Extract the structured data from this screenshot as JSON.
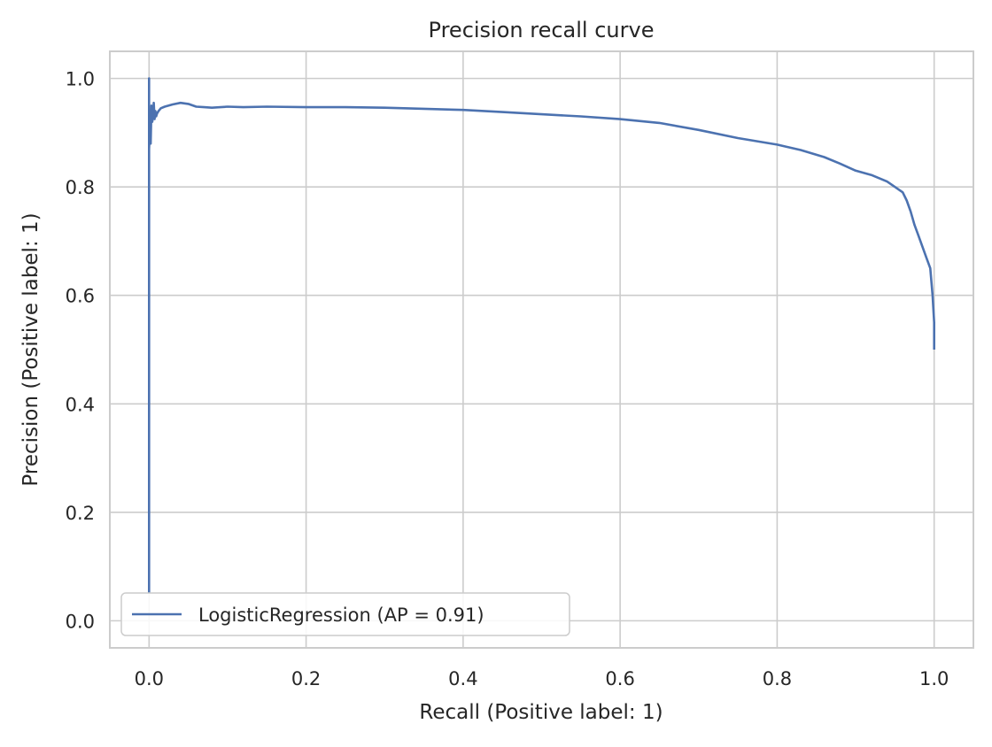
{
  "chart_data": {
    "type": "line",
    "title": "Precision recall curve",
    "xlabel": "Recall (Positive label: 1)",
    "ylabel": "Precision (Positive label: 1)",
    "xlim": [
      -0.05,
      1.05
    ],
    "ylim": [
      -0.05,
      1.05
    ],
    "xticks": [
      0.0,
      0.2,
      0.4,
      0.6,
      0.8,
      1.0
    ],
    "xtick_labels": [
      "0.0",
      "0.2",
      "0.4",
      "0.6",
      "0.8",
      "1.0"
    ],
    "yticks": [
      0.0,
      0.2,
      0.4,
      0.6,
      0.8,
      1.0
    ],
    "ytick_labels": [
      "0.0",
      "0.2",
      "0.4",
      "0.6",
      "0.8",
      "1.0"
    ],
    "grid": true,
    "legend_position": "lower-left",
    "series": [
      {
        "name": "LogisticRegression (AP = 0.91)",
        "color": "#4c72b0",
        "x": [
          0.0,
          0.0,
          0.0,
          0.002,
          0.002,
          0.003,
          0.004,
          0.005,
          0.006,
          0.007,
          0.008,
          0.009,
          0.01,
          0.012,
          0.015,
          0.02,
          0.03,
          0.04,
          0.05,
          0.06,
          0.07,
          0.08,
          0.1,
          0.12,
          0.15,
          0.2,
          0.25,
          0.3,
          0.35,
          0.4,
          0.45,
          0.5,
          0.55,
          0.6,
          0.65,
          0.7,
          0.75,
          0.8,
          0.83,
          0.86,
          0.88,
          0.9,
          0.92,
          0.94,
          0.95,
          0.96,
          0.965,
          0.97,
          0.975,
          0.98,
          0.985,
          0.99,
          0.995,
          0.998,
          1.0,
          1.0
        ],
        "y": [
          0.05,
          1.0,
          0.87,
          0.94,
          0.88,
          0.95,
          0.92,
          0.93,
          0.955,
          0.925,
          0.94,
          0.93,
          0.935,
          0.94,
          0.945,
          0.948,
          0.952,
          0.955,
          0.953,
          0.948,
          0.947,
          0.946,
          0.948,
          0.947,
          0.948,
          0.947,
          0.947,
          0.946,
          0.944,
          0.942,
          0.938,
          0.934,
          0.93,
          0.925,
          0.918,
          0.905,
          0.89,
          0.878,
          0.868,
          0.855,
          0.843,
          0.83,
          0.822,
          0.81,
          0.8,
          0.79,
          0.775,
          0.755,
          0.73,
          0.71,
          0.69,
          0.67,
          0.65,
          0.6,
          0.55,
          0.5
        ]
      }
    ]
  }
}
